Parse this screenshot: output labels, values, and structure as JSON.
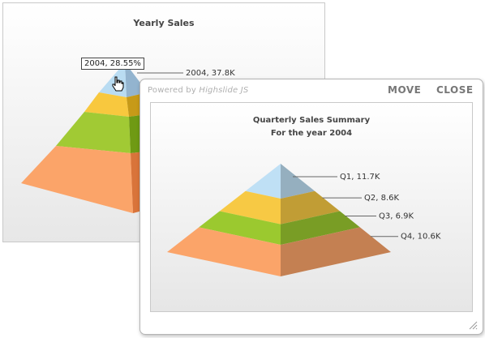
{
  "background_chart": {
    "title": "Yearly Sales",
    "data_label": "2004, 37.8K",
    "tooltip": "2004, 28.55%"
  },
  "popup": {
    "powered_by_prefix": "Powered by",
    "powered_by_brand": "Highslide JS",
    "move_label": "MOVE",
    "close_label": "CLOSE",
    "icons": [
      "resize-grip-icon"
    ]
  },
  "chart_data": {
    "type": "pyramid",
    "title": "Quarterly Sales Summary",
    "subtitle": "For the year 2004",
    "categories": [
      "Q1",
      "Q2",
      "Q3",
      "Q4"
    ],
    "values": [
      11.7,
      8.6,
      6.9,
      10.6
    ],
    "labels": [
      "Q1, 11.7K",
      "Q2, 8.6K",
      "Q3, 6.9K",
      "Q4, 10.6K"
    ],
    "colors": [
      "#bfe0f5",
      "#f7c944",
      "#9bc92f",
      "#fba469"
    ]
  }
}
